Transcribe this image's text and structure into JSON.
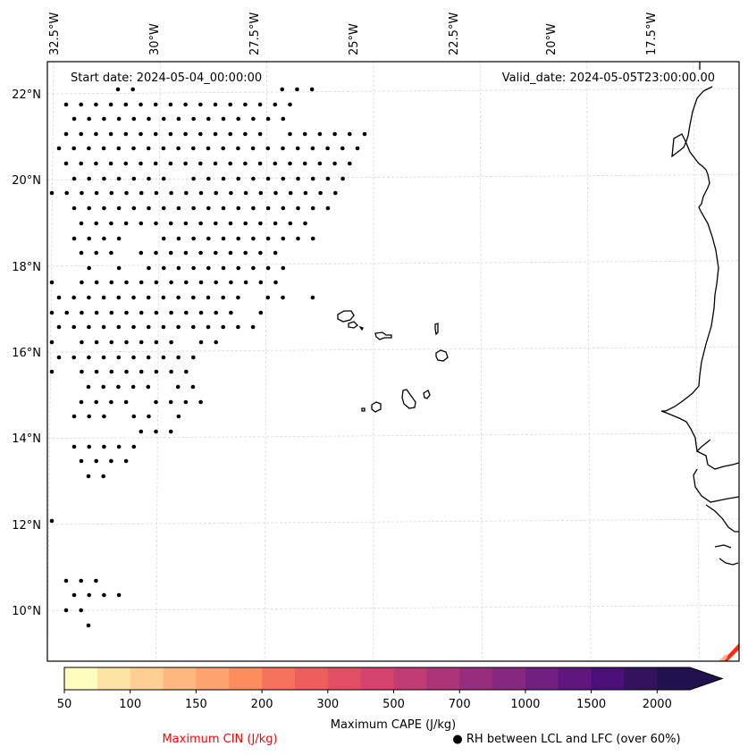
{
  "map": {
    "start_date": "Start date: 2024-05-04_00:00:00",
    "valid_date": "Valid_date: 2024-05-05T23:00:00.00",
    "lon_ticks": [
      "32.5°W",
      "30°W",
      "27.5°W",
      "25°W",
      "22.5°W",
      "20°W",
      "17.5°W"
    ],
    "lat_ticks": [
      "22°N",
      "20°N",
      "18°N",
      "16°N",
      "14°N",
      "12°N",
      "10°N"
    ],
    "lon_values": [
      -32.5,
      -30,
      -27.5,
      -25,
      -22.5,
      -20,
      -17.5
    ],
    "lat_values": [
      22,
      20,
      18,
      16,
      14,
      12,
      10
    ],
    "extent": {
      "lon_min": -32.5,
      "lon_max": -16.4,
      "lat_min": 8.9,
      "lat_max": 22.8
    }
  },
  "colorbar": {
    "label": "Maximum CAPE (J/kg)",
    "levels": [
      50,
      75,
      100,
      125,
      150,
      175,
      200,
      250,
      300,
      400,
      500,
      600,
      700,
      850,
      1000,
      1250,
      1500,
      1750,
      2000
    ],
    "tick_labels": [
      "50",
      "100",
      "150",
      "200",
      "300",
      "500",
      "700",
      "1000",
      "1500",
      "2000"
    ],
    "colors": [
      "#fcfdbf",
      "#fde4a5",
      "#fecf92",
      "#feb77e",
      "#fea36f",
      "#fd8d5f",
      "#f7725c",
      "#ec5f5d",
      "#e14f64",
      "#d3436e",
      "#c13c74",
      "#ad3479",
      "#982d7e",
      "#85287e",
      "#711f81",
      "#5d177f",
      "#481078",
      "#34125c",
      "#21114e"
    ],
    "extend": "max"
  },
  "legend": {
    "cin_label": "Maximum CIN (J/kg)",
    "cin_color": "#ff0000",
    "rh_label": "● RH between LCL and LFC (over 60%)"
  }
}
